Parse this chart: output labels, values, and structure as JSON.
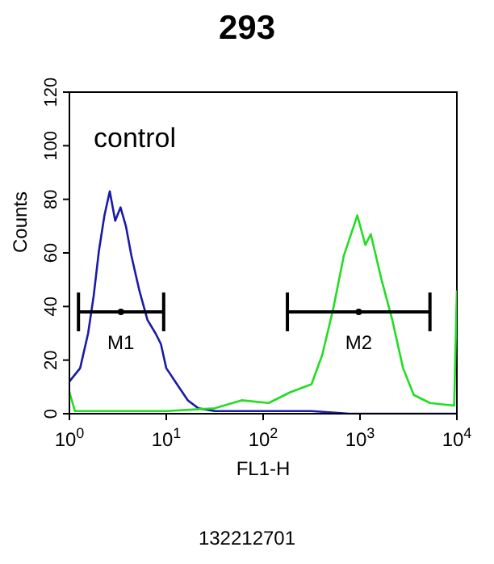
{
  "chart_data": {
    "type": "line",
    "title": "293",
    "xlabel": "FL1-H",
    "ylabel": "Counts",
    "log": "x",
    "xlim": [
      1,
      10000
    ],
    "ylim": [
      0,
      120
    ],
    "xticks": [
      {
        "value": 1,
        "label": "10$^{0}$"
      },
      {
        "value": 10,
        "label": "10$^{1}$"
      },
      {
        "value": 100,
        "label": "10$^{2}$"
      },
      {
        "value": 1000,
        "label": "10$^{3}$"
      },
      {
        "value": 10000,
        "label": "10$^{4}$"
      }
    ],
    "yticks": [
      0,
      20,
      40,
      60,
      80,
      100,
      120
    ],
    "grid": false,
    "marker": "none",
    "line_style": "solid",
    "series": [
      {
        "color": "#1a1aa8",
        "x": [
          1,
          1.29,
          1.56,
          1.78,
          2.02,
          2.3,
          2.61,
          2.97,
          3.37,
          3.83,
          4.36,
          5.27,
          6.39,
          7.74,
          8.8,
          10,
          12.9,
          16.7,
          21.5,
          31.6,
          114,
          316,
          774,
          10000
        ],
        "values": [
          12,
          17,
          30,
          44,
          61,
          74,
          83,
          72,
          77,
          70,
          59,
          46,
          35,
          30,
          26,
          17,
          11,
          5,
          2,
          1,
          1,
          1,
          0,
          0
        ]
      },
      {
        "color": "#22dd22",
        "x": [
          1,
          1.14,
          10,
          31.6,
          60,
          114,
          190,
          316,
          408,
          528,
          681,
          938,
          1136,
          1292,
          1668,
          2154,
          2783,
          3594,
          5275,
          9380,
          10000
        ],
        "values": [
          8,
          1,
          1,
          2,
          5,
          4,
          8,
          11,
          22,
          39,
          59,
          74,
          63,
          67,
          50,
          35,
          17,
          7,
          4,
          3,
          46
        ]
      },
      {
        "type": "scatter",
        "marker": "circle",
        "color": "#000000",
        "x": [
          3.4,
          970
        ],
        "values": [
          38,
          38
        ],
        "xerrors": [
          [
            1.24,
            9.4
          ],
          [
            178,
            5275
          ]
        ],
        "value_labels": [
          "M1",
          "M2"
        ]
      }
    ],
    "annotations": [
      "control",
      "132212701"
    ]
  }
}
